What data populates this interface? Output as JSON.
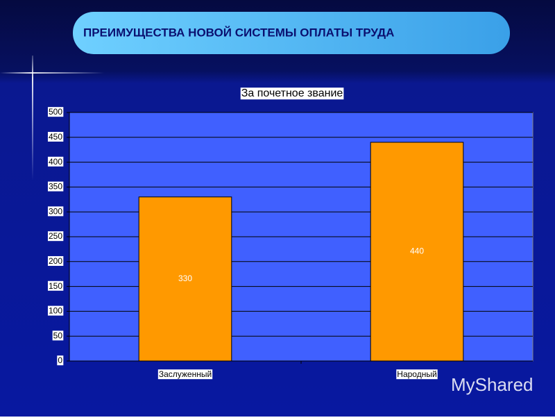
{
  "slide_title": "ПРЕИМУЩЕСТВА НОВОЙ СИСТЕМЫ ОПЛАТЫ ТРУДА",
  "chart_data": {
    "type": "bar",
    "title": "За почетное звание",
    "categories": [
      "Заслуженный",
      "Народный"
    ],
    "values": [
      330,
      440
    ],
    "color": "#ff9900",
    "ylim": [
      0,
      500
    ],
    "yticks": [
      0,
      50,
      100,
      150,
      200,
      250,
      300,
      350,
      400,
      450,
      500
    ],
    "grid": true
  },
  "watermark": "MyShared"
}
